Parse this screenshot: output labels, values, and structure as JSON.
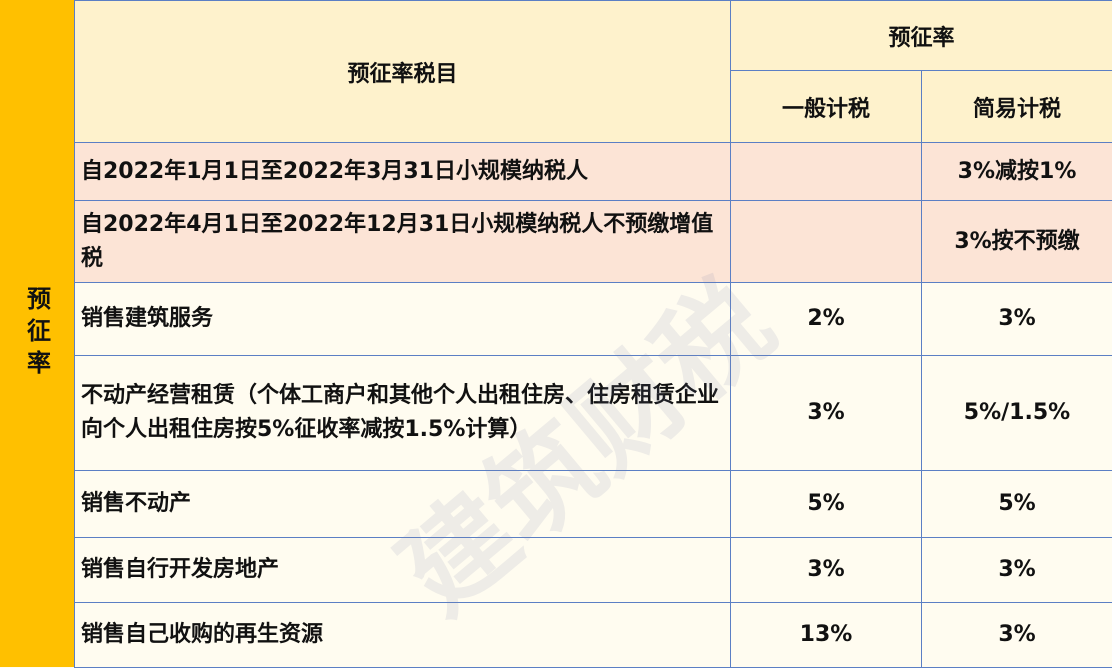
{
  "side_label": "预征率",
  "header": {
    "item": "预征率税目",
    "rate_group": "预征率",
    "general": "一般计税",
    "simple": "简易计税"
  },
  "rows": [
    {
      "item": "自2022年1月1日至2022年3月31日小规模纳税人",
      "general": "",
      "simple": "3%减按1%",
      "highlight": true
    },
    {
      "item": "自2022年4月1日至2022年12月31日小规模纳税人不预缴增值税",
      "general": "",
      "simple": "3%按不预缴",
      "highlight": true
    },
    {
      "item": "销售建筑服务",
      "general": "2%",
      "simple": "3%"
    },
    {
      "item": "不动产经营租赁（个体工商户和其他个人出租住房、住房租赁企业向个人出租住房按5%征收率减按1.5%计算）",
      "general": "3%",
      "simple": "5%/1.5%"
    },
    {
      "item": "销售不动产",
      "general": "5%",
      "simple": "5%"
    },
    {
      "item": "销售自行开发房地产",
      "general": "3%",
      "simple": "3%"
    },
    {
      "item": "销售自己收购的再生资源",
      "general": "13%",
      "simple": "3%"
    }
  ],
  "watermark": "建筑财税",
  "colors": {
    "side": "#ffc000",
    "header": "#fef2cc",
    "highlight": "#fce4d6",
    "border": "#5b7fc4"
  }
}
